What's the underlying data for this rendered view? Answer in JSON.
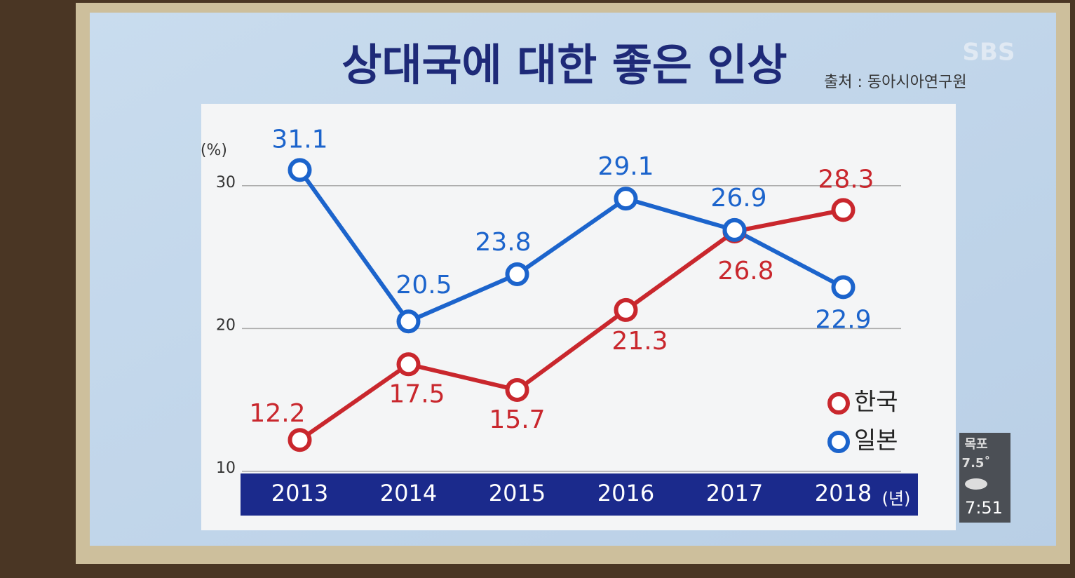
{
  "chart_data": {
    "type": "line",
    "title": "상대국에 대한 좋은 인상",
    "source": "출처 : 동아시아연구원",
    "logo": "SBS",
    "y_unit": "(%)",
    "x_unit": "(년)",
    "categories": [
      "2013",
      "2014",
      "2015",
      "2016",
      "2017",
      "2018"
    ],
    "series": [
      {
        "name": "한국",
        "color": "#c9272d",
        "values": [
          12.2,
          17.5,
          15.7,
          21.3,
          26.8,
          28.3
        ]
      },
      {
        "name": "일본",
        "color": "#1c64cc",
        "values": [
          31.1,
          20.5,
          23.8,
          29.1,
          26.9,
          22.9
        ]
      }
    ],
    "ylim": [
      10,
      35
    ],
    "yticks": [
      10,
      20,
      30
    ],
    "grid": true,
    "legend": "lower right",
    "weather": {
      "city": "목포",
      "temperature": "7.5˚",
      "time": "7:51"
    }
  }
}
